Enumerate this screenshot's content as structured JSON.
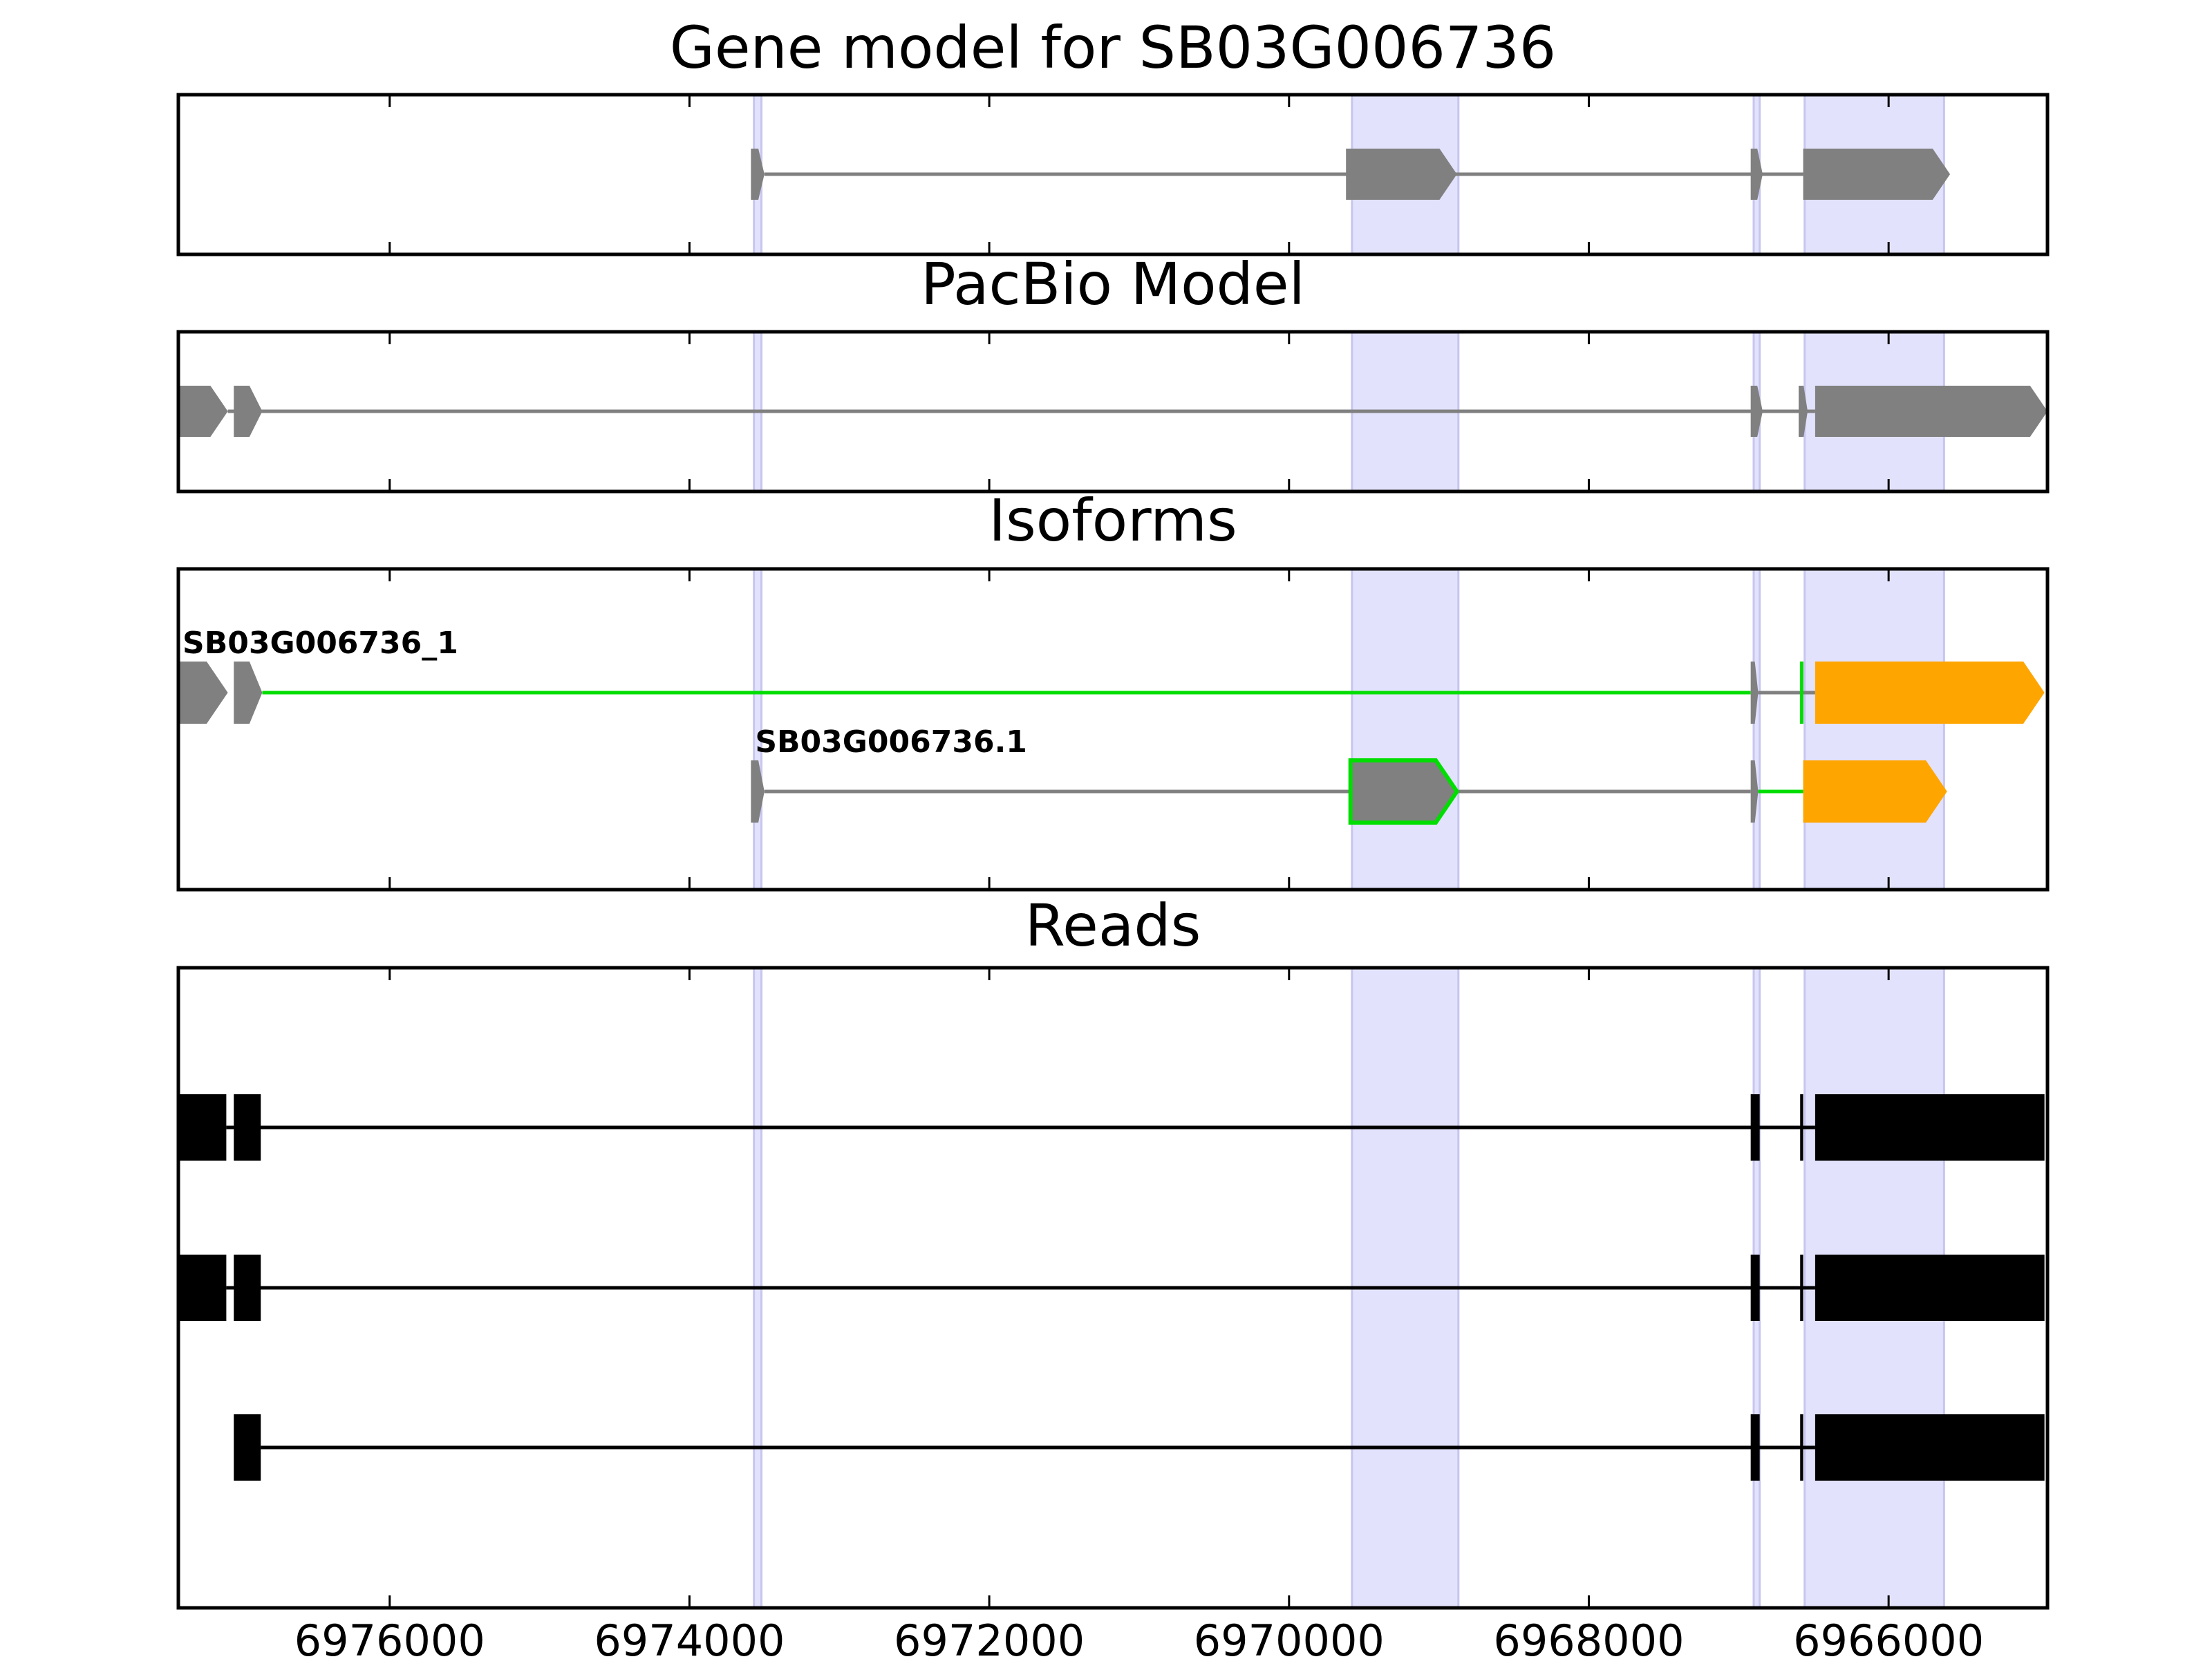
{
  "chart_data": {
    "type": "gene-track",
    "x_reversed": true,
    "xlim": [
      6977410,
      6964940
    ],
    "x_ticks": [
      6976000,
      6974000,
      6972000,
      6970000,
      6968000,
      6966000
    ],
    "x_tick_labels": [
      "6976000",
      "6974000",
      "6972000",
      "6970000",
      "6968000",
      "6966000"
    ],
    "highlight_regions": [
      [
        6973570,
        6973520
      ],
      [
        6969580,
        6968870
      ],
      [
        6966900,
        6966860
      ],
      [
        6966560,
        6965630
      ]
    ],
    "colors": {
      "highlight": "#e2e2fc",
      "highlight_edge": "#c6c6ef",
      "exon": "#808080",
      "intron": "#808080",
      "match": "#00dd00",
      "utr": "#ffa500",
      "read": "#000000",
      "frame": "#000000"
    },
    "panels": [
      {
        "title": "Gene model for SB03G006736",
        "rows": 1,
        "tracks": [
          {
            "row": 0,
            "label": "",
            "color": "exon",
            "intron_color": "intron",
            "exons": [
              [
                6973590,
                6973500
              ],
              [
                6969620,
                6968880
              ],
              [
                6966920,
                6966840
              ],
              [
                6966570,
                6965590
              ]
            ],
            "introns": []
          }
        ]
      },
      {
        "title": "PacBio Model",
        "rows": 1,
        "tracks": [
          {
            "row": 0,
            "label": "",
            "color": "exon",
            "intron_color": "intron",
            "exons": [
              [
                6977410,
                6977080
              ],
              [
                6977040,
                6976850
              ],
              [
                6966920,
                6966840
              ],
              [
                6966600,
                6966540
              ],
              [
                6966490,
                6964940
              ]
            ],
            "introns": []
          }
        ]
      },
      {
        "title": "Isoforms",
        "rows": 2,
        "tracks": [
          {
            "row": 0,
            "label": "SB03G006736_1",
            "color": "exon",
            "intron_color": "match",
            "exons": [
              [
                6977410,
                6977080
              ],
              [
                6977040,
                6976850
              ],
              [
                6966920,
                6966870
              ]
            ],
            "utr_exons": [
              [
                6966490,
                6964960
              ]
            ],
            "tick_marks": [
              6966580
            ],
            "introns": [
              {
                "from": 6976850,
                "to": 6966920,
                "color": "match"
              },
              {
                "from": 6966870,
                "to": 6966490,
                "color": "intron"
              }
            ]
          },
          {
            "row": 1,
            "label": "SB03G006736.1",
            "color": "exon",
            "intron_color": "intron",
            "exons": [
              [
                6973590,
                6973500
              ],
              [
                6969590,
                6968880
              ],
              [
                6966920,
                6966870
              ]
            ],
            "outlined_exons": [
              1
            ],
            "utr_exons": [
              [
                6966570,
                6965610
              ]
            ],
            "introns": [
              {
                "from": 6973500,
                "to": 6969590,
                "color": "intron"
              },
              {
                "from": 6968880,
                "to": 6966920,
                "color": "intron"
              },
              {
                "from": 6966870,
                "to": 6966570,
                "color": "match"
              }
            ]
          }
        ]
      },
      {
        "title": "Reads",
        "rows": 3,
        "tracks": [
          {
            "row": 0,
            "label": "",
            "color": "read",
            "intron_color": "read",
            "exons": [
              [
                6977410,
                6977090
              ],
              [
                6977040,
                6976860
              ],
              [
                6966920,
                6966860
              ],
              [
                6966590,
                6966570
              ],
              [
                6966490,
                6964960
              ]
            ],
            "introns": []
          },
          {
            "row": 1,
            "label": "",
            "color": "read",
            "intron_color": "read",
            "exons": [
              [
                6977410,
                6977090
              ],
              [
                6977040,
                6976860
              ],
              [
                6966920,
                6966860
              ],
              [
                6966590,
                6966570
              ],
              [
                6966490,
                6964960
              ]
            ],
            "introns": []
          },
          {
            "row": 2,
            "label": "",
            "color": "read",
            "intron_color": "read",
            "exons": [
              [
                6977040,
                6976860
              ],
              [
                6966920,
                6966860
              ],
              [
                6966590,
                6966570
              ],
              [
                6966490,
                6964960
              ]
            ],
            "introns": []
          }
        ]
      }
    ]
  }
}
